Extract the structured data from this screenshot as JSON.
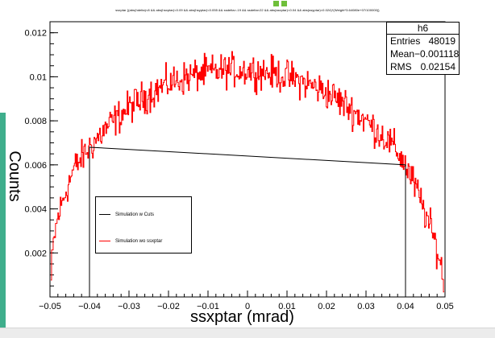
{
  "title": "ssxptar {(abs(hdelta)<8 && abs(hsxptar)<0.09 && abs(hsyptar)<0.055 && ssdelta>-19 && ssdelta<22 && abs(ssxptar)<0.04 && abs(ssyptar)<0.024)*(Weight*3.64080e+07/100000)}",
  "colors": {
    "series_wo": "#ff0000",
    "series_w": "#000000",
    "background": "#ffffff",
    "accent_strip": "#3fae8c"
  },
  "stats": {
    "name": "h6",
    "rows": [
      {
        "label": "Entries",
        "value": "48019"
      },
      {
        "label": "Mean",
        "value": "−0.001118"
      },
      {
        "label": "RMS",
        "value": "0.02154"
      }
    ]
  },
  "legend": {
    "items": [
      {
        "label": "Simulation w Cuts",
        "color": "#000000"
      },
      {
        "label": "Simulation wo ssxptar",
        "color": "#ff0000"
      }
    ]
  },
  "chart_data": {
    "type": "line",
    "xlabel": "ssxptar (mrad)",
    "ylabel": "Counts",
    "xlim": [
      -0.05,
      0.05
    ],
    "ylim": [
      0,
      0.0125
    ],
    "x_ticks": [
      "−0.05",
      "−0.04",
      "−0.03",
      "−0.02",
      "−0.01",
      "0",
      "0.01",
      "0.02",
      "0.03",
      "0.04",
      "0.05"
    ],
    "y_ticks": [
      "0.002",
      "0.004",
      "0.006",
      "0.008",
      "0.01",
      "0.012"
    ],
    "grid": false,
    "legend_position": "left",
    "series": [
      {
        "name": "Simulation wo ssxptar",
        "x": [
          -0.0498,
          -0.0495,
          -0.049,
          -0.048,
          -0.046,
          -0.044,
          -0.042,
          -0.04,
          -0.038,
          -0.035,
          -0.03,
          -0.025,
          -0.02,
          -0.015,
          -0.01,
          -0.005,
          0,
          0.005,
          0.01,
          0.015,
          0.02,
          0.025,
          0.03,
          0.035,
          0.038,
          0.04,
          0.042,
          0.044,
          0.046,
          0.048,
          0.049,
          0.0498
        ],
        "y": [
          0.0003,
          0.0015,
          0.0026,
          0.0036,
          0.0048,
          0.0058,
          0.0063,
          0.0068,
          0.0072,
          0.0078,
          0.0086,
          0.0092,
          0.0097,
          0.01,
          0.0102,
          0.0103,
          0.0103,
          0.0102,
          0.01,
          0.0097,
          0.0093,
          0.0087,
          0.008,
          0.0072,
          0.0066,
          0.006,
          0.0052,
          0.0043,
          0.0033,
          0.0022,
          0.0014,
          0.0006
        ]
      },
      {
        "name": "Simulation w Cuts",
        "x": [
          -0.04,
          -0.04,
          0.04,
          0.04
        ],
        "y": [
          0,
          0.0068,
          0.006,
          0
        ]
      }
    ]
  }
}
